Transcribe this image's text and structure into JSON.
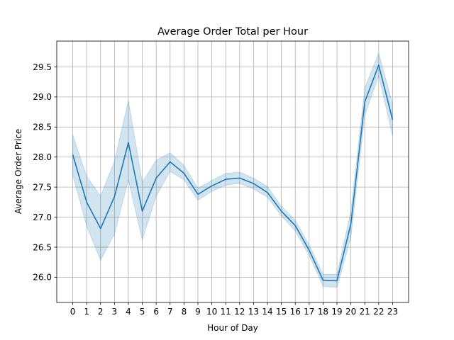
{
  "chart_data": {
    "type": "line",
    "title": "Average Order Total per Hour",
    "xlabel": "Hour of Day",
    "ylabel": "Average Order Price",
    "x": [
      0,
      1,
      2,
      3,
      4,
      5,
      6,
      7,
      8,
      9,
      10,
      11,
      12,
      13,
      14,
      15,
      16,
      17,
      18,
      19,
      20,
      21,
      22,
      23
    ],
    "xticks": [
      "0",
      "1",
      "2",
      "3",
      "4",
      "5",
      "6",
      "7",
      "8",
      "9",
      "10",
      "11",
      "12",
      "13",
      "14",
      "15",
      "16",
      "17",
      "18",
      "19",
      "20",
      "21",
      "22",
      "23"
    ],
    "yticks": [
      26.0,
      26.5,
      27.0,
      27.5,
      28.0,
      28.5,
      29.0,
      29.5
    ],
    "ytick_labels": [
      "26.0",
      "26.5",
      "27.0",
      "27.5",
      "28.0",
      "28.5",
      "29.0",
      "29.5"
    ],
    "xlim": [
      -1.15,
      24.15
    ],
    "ylim": [
      25.58,
      29.93
    ],
    "grid": true,
    "line_color": "#1f77b4",
    "band_color": "#1f77b4",
    "series": [
      {
        "values": [
          28.04,
          27.25,
          26.81,
          27.34,
          28.24,
          27.1,
          27.65,
          27.92,
          27.73,
          27.38,
          27.52,
          27.63,
          27.65,
          27.56,
          27.41,
          27.1,
          26.86,
          26.45,
          25.95,
          25.94,
          26.89,
          28.92,
          29.53,
          28.62
        ],
        "ci_lower": [
          27.7,
          26.85,
          26.28,
          26.72,
          27.62,
          26.62,
          27.35,
          27.76,
          27.62,
          27.28,
          27.43,
          27.53,
          27.56,
          27.47,
          27.33,
          27.02,
          26.77,
          26.36,
          25.85,
          25.83,
          26.66,
          28.7,
          29.35,
          28.35
        ],
        "ci_upper": [
          28.37,
          27.68,
          27.35,
          27.93,
          28.94,
          27.58,
          27.95,
          28.07,
          27.86,
          27.48,
          27.61,
          27.73,
          27.75,
          27.65,
          27.51,
          27.18,
          26.95,
          26.54,
          26.05,
          26.05,
          27.1,
          29.15,
          29.73,
          28.88
        ]
      }
    ]
  }
}
